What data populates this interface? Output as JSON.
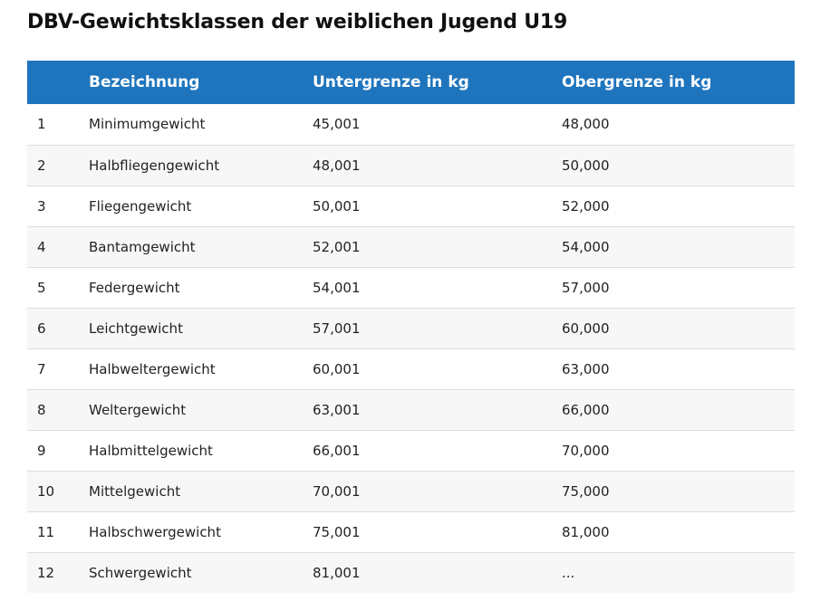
{
  "title": "DBV-Gewichtsklassen der weiblichen Jugend U19",
  "table": {
    "headers": [
      "",
      "Bezeichnung",
      "Untergrenze in kg",
      "Obergrenze in kg"
    ],
    "rows": [
      {
        "num": "1",
        "name": "Minimumgewicht",
        "lower": "45,001",
        "upper": "48,000"
      },
      {
        "num": "2",
        "name": "Halbfliegengewicht",
        "lower": "48,001",
        "upper": "50,000"
      },
      {
        "num": "3",
        "name": "Fliegengewicht",
        "lower": "50,001",
        "upper": "52,000"
      },
      {
        "num": "4",
        "name": "Bantamgewicht",
        "lower": "52,001",
        "upper": "54,000"
      },
      {
        "num": "5",
        "name": "Federgewicht",
        "lower": "54,001",
        "upper": "57,000"
      },
      {
        "num": "6",
        "name": "Leichtgewicht",
        "lower": "57,001",
        "upper": "60,000"
      },
      {
        "num": "7",
        "name": "Halbweltergewicht",
        "lower": "60,001",
        "upper": "63,000"
      },
      {
        "num": "8",
        "name": "Weltergewicht",
        "lower": "63,001",
        "upper": "66,000"
      },
      {
        "num": "9",
        "name": "Halbmittelgewicht",
        "lower": "66,001",
        "upper": "70,000"
      },
      {
        "num": "10",
        "name": "Mittelgewicht",
        "lower": "70,001",
        "upper": "75,000"
      },
      {
        "num": "11",
        "name": "Halbschwergewicht",
        "lower": "75,001",
        "upper": "81,000"
      },
      {
        "num": "12",
        "name": "Schwergewicht",
        "lower": "81,001",
        "upper": "..."
      }
    ]
  },
  "colors": {
    "header_background": "#1f75bd",
    "header_text": "#ffffff",
    "row_alt_background": "#f7f7f7",
    "row_divider": "#dedede"
  }
}
